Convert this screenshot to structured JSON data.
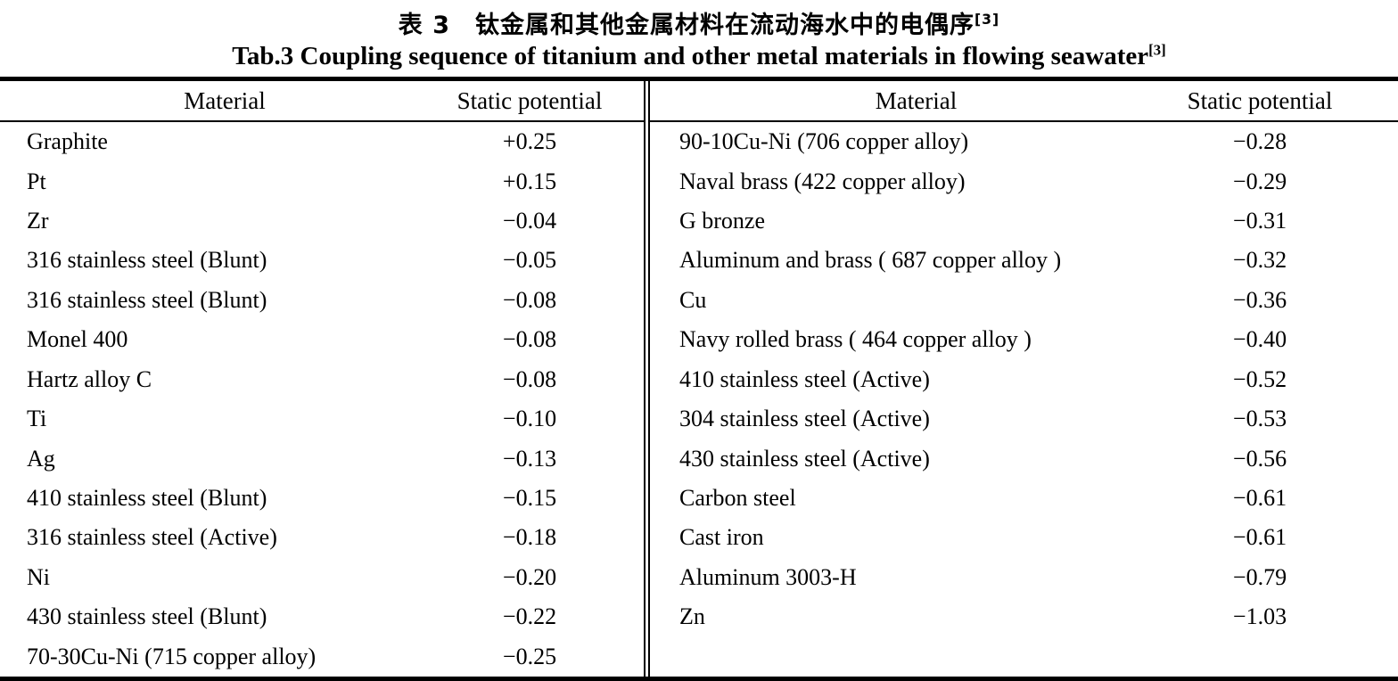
{
  "caption": {
    "zh_text": "表 3　钛金属和其他金属材料在流动海水中的电偶序",
    "zh_ref": "[3]",
    "en_text": "Tab.3 Coupling sequence of titanium and other metal materials in flowing seawater",
    "en_ref": "[3]"
  },
  "headers": {
    "material": "Material",
    "potential": "Static potential"
  },
  "left_rows": [
    {
      "material": "Graphite",
      "potential": "+0.25"
    },
    {
      "material": "Pt",
      "potential": "+0.15"
    },
    {
      "material": "Zr",
      "potential": "−0.04"
    },
    {
      "material": "316 stainless steel (Blunt)",
      "potential": "−0.05"
    },
    {
      "material": "316 stainless steel (Blunt)",
      "potential": "−0.08"
    },
    {
      "material": "Monel 400",
      "potential": "−0.08"
    },
    {
      "material": "Hartz alloy C",
      "potential": "−0.08"
    },
    {
      "material": "Ti",
      "potential": "−0.10"
    },
    {
      "material": "Ag",
      "potential": "−0.13"
    },
    {
      "material": "410 stainless steel (Blunt)",
      "potential": "−0.15"
    },
    {
      "material": "316 stainless steel (Active)",
      "potential": "−0.18"
    },
    {
      "material": "Ni",
      "potential": "−0.20"
    },
    {
      "material": "430 stainless steel (Blunt)",
      "potential": "−0.22"
    },
    {
      "material": "70-30Cu-Ni (715 copper alloy)",
      "potential": "−0.25"
    }
  ],
  "right_rows": [
    {
      "material": "90-10Cu-Ni (706 copper alloy)",
      "potential": "−0.28"
    },
    {
      "material": "Naval brass (422 copper alloy)",
      "potential": "−0.29"
    },
    {
      "material": "G bronze",
      "potential": "−0.31"
    },
    {
      "material": "Aluminum and brass ( 687 copper alloy )",
      "potential": "−0.32"
    },
    {
      "material": "Cu",
      "potential": "−0.36"
    },
    {
      "material": "Navy rolled brass ( 464 copper alloy )",
      "potential": "−0.40"
    },
    {
      "material": "410 stainless steel (Active)",
      "potential": "−0.52"
    },
    {
      "material": "304 stainless steel (Active)",
      "potential": "−0.53"
    },
    {
      "material": "430 stainless steel (Active)",
      "potential": "−0.56"
    },
    {
      "material": "Carbon steel",
      "potential": "−0.61"
    },
    {
      "material": "Cast iron",
      "potential": "−0.61"
    },
    {
      "material": "Aluminum 3003-H",
      "potential": "−0.79"
    },
    {
      "material": "Zn",
      "potential": "−1.03"
    }
  ]
}
